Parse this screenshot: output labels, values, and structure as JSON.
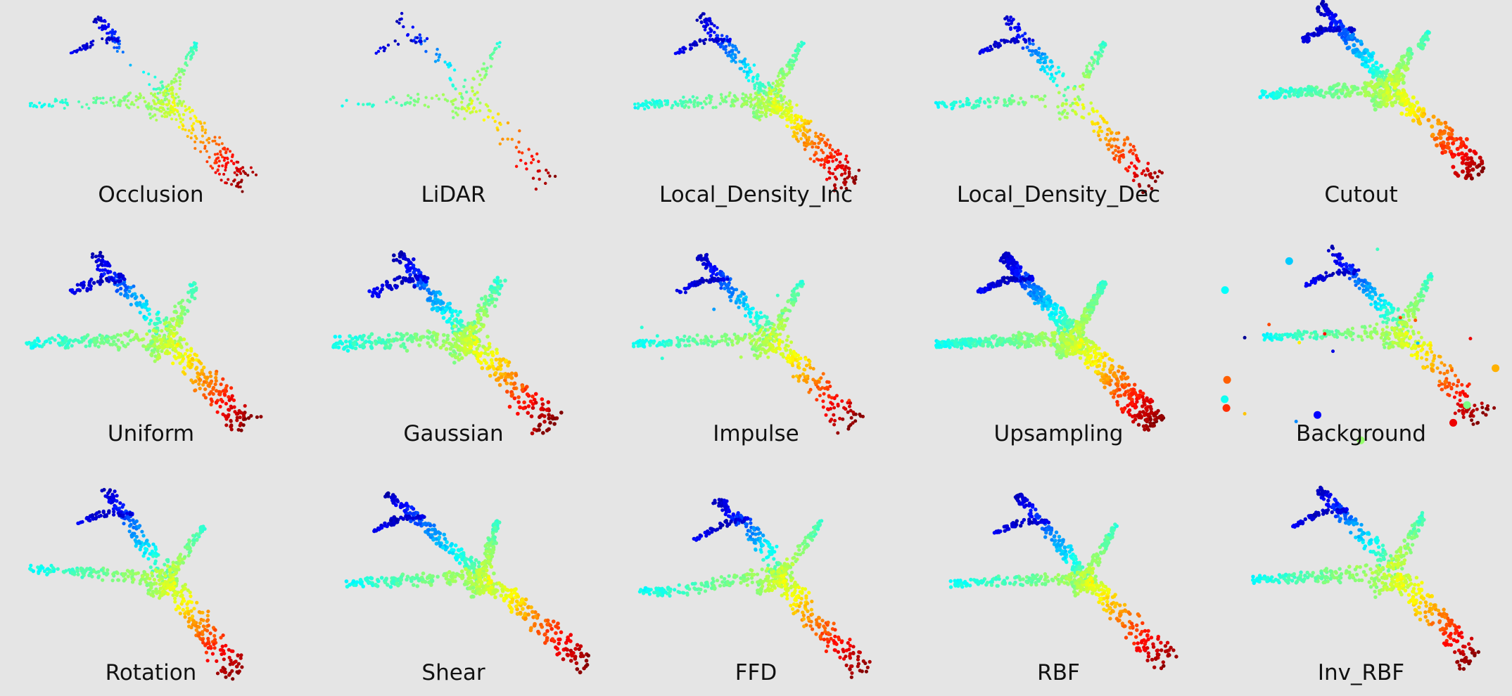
{
  "figure": {
    "background_color": "#e5e5e5",
    "colormap": "jet",
    "object": "airplane point cloud",
    "panels": [
      {
        "label": "Occlusion",
        "variant": "occlusion"
      },
      {
        "label": "LiDAR",
        "variant": "lidar"
      },
      {
        "label": "Local_Density_Inc",
        "variant": "density_inc"
      },
      {
        "label": "Local_Density_Dec",
        "variant": "density_dec"
      },
      {
        "label": "Cutout",
        "variant": "cutout"
      },
      {
        "label": "Uniform",
        "variant": "uniform"
      },
      {
        "label": "Gaussian",
        "variant": "gaussian"
      },
      {
        "label": "Impulse",
        "variant": "impulse"
      },
      {
        "label": "Upsampling",
        "variant": "upsampling"
      },
      {
        "label": "Background",
        "variant": "background"
      },
      {
        "label": "Rotation",
        "variant": "rotation"
      },
      {
        "label": "Shear",
        "variant": "shear"
      },
      {
        "label": "FFD",
        "variant": "ffd"
      },
      {
        "label": "RBF",
        "variant": "rbf"
      },
      {
        "label": "Inv_RBF",
        "variant": "inv_rbf"
      }
    ]
  }
}
